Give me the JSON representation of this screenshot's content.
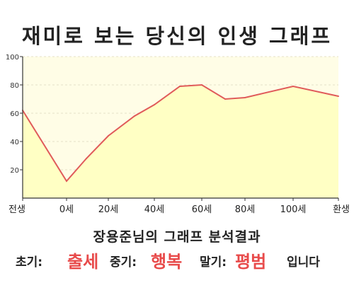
{
  "title": "재미로 보는 당신의 인생 그래프",
  "subtitle": "장용준님의 그래프 분석결과",
  "summary": {
    "early_label": "초기:",
    "early_value": "출세",
    "middle_label": "중기:",
    "middle_value": "행복",
    "late_label": "말기:",
    "late_value": "평범",
    "ending": "입니다"
  },
  "colors": {
    "line": "#e05a5a",
    "fill": "#ffffc4",
    "plot_bg": "#fffde6",
    "highlight": "#e84a4a"
  },
  "chart_data": {
    "type": "area",
    "xticks": [
      "전생",
      "0세",
      "20세",
      "40세",
      "60세",
      "80세",
      "100세",
      "환생"
    ],
    "x": [
      "전생",
      "0세",
      "10세",
      "20세",
      "32세",
      "40세",
      "52세",
      "60세",
      "70세",
      "80세",
      "100세",
      "환생"
    ],
    "values": [
      62,
      12,
      28,
      44,
      58,
      66,
      79,
      80,
      70,
      71,
      79,
      72
    ],
    "ylim": [
      0,
      100
    ],
    "yticks": [
      20,
      40,
      60,
      80,
      100
    ],
    "grid": true
  }
}
